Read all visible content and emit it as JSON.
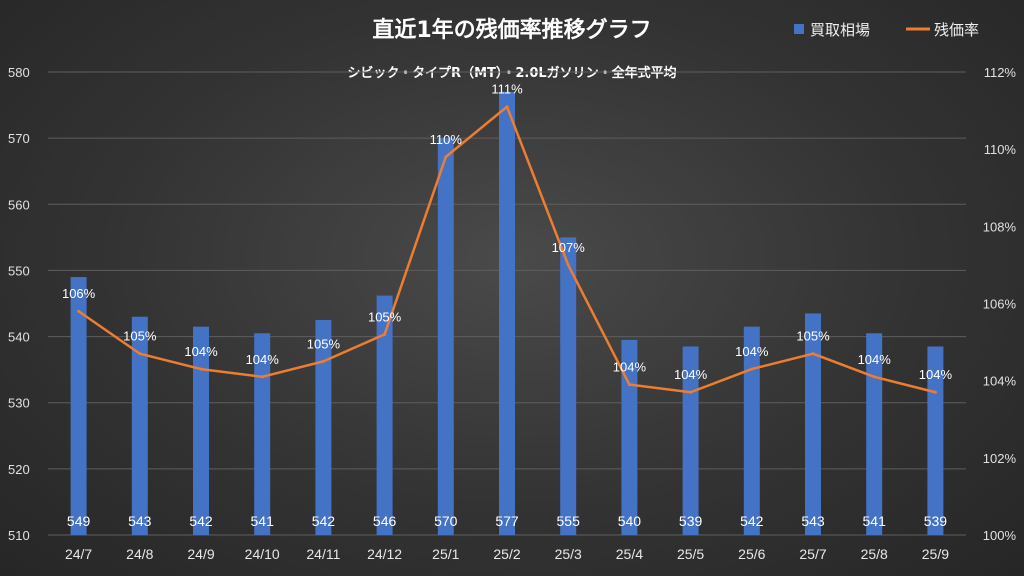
{
  "chart_data": {
    "type": "bar+line",
    "title": "直近1年の残価率推移グラフ",
    "subtitle": "シビック・タイプR（MT）・2.0Lガソリン・全年式平均",
    "categories": [
      "24/7",
      "24/8",
      "24/9",
      "24/10",
      "24/11",
      "24/12",
      "25/1",
      "25/2",
      "25/3",
      "25/4",
      "25/5",
      "25/6",
      "25/7",
      "25/8",
      "25/9"
    ],
    "series": [
      {
        "name": "買取相場",
        "type": "bar",
        "axis": "left",
        "color": "#4472c4",
        "values": [
          549,
          543,
          541.5,
          540.5,
          542.5,
          546.2,
          570,
          577,
          555,
          539.5,
          538.5,
          541.5,
          543.5,
          540.5,
          538.5
        ],
        "labels": [
          "549",
          "543",
          "542",
          "541",
          "542",
          "546",
          "570",
          "577",
          "555",
          "540",
          "539",
          "542",
          "543",
          "541",
          "539"
        ]
      },
      {
        "name": "残価率",
        "type": "line",
        "axis": "right",
        "color": "#ed7d31",
        "values": [
          105.8,
          104.7,
          104.3,
          104.1,
          104.5,
          105.2,
          109.8,
          111.1,
          107.0,
          103.9,
          103.7,
          104.3,
          104.7,
          104.1,
          103.7
        ],
        "labels": [
          "106%",
          "105%",
          "104%",
          "104%",
          "105%",
          "105%",
          "110%",
          "111%",
          "107%",
          "104%",
          "104%",
          "104%",
          "105%",
          "104%",
          "104%"
        ]
      }
    ],
    "y_left": {
      "min": 510,
      "max": 580,
      "step": 10,
      "ticks": [
        "510",
        "520",
        "530",
        "540",
        "550",
        "560",
        "570",
        "580"
      ]
    },
    "y_right": {
      "min": 100,
      "max": 112,
      "step": 2,
      "ticks": [
        "100%",
        "102%",
        "104%",
        "106%",
        "108%",
        "110%",
        "112%"
      ]
    },
    "legend": {
      "position": "top-right",
      "items": [
        "買取相場",
        "残価率"
      ]
    },
    "grid": true
  }
}
